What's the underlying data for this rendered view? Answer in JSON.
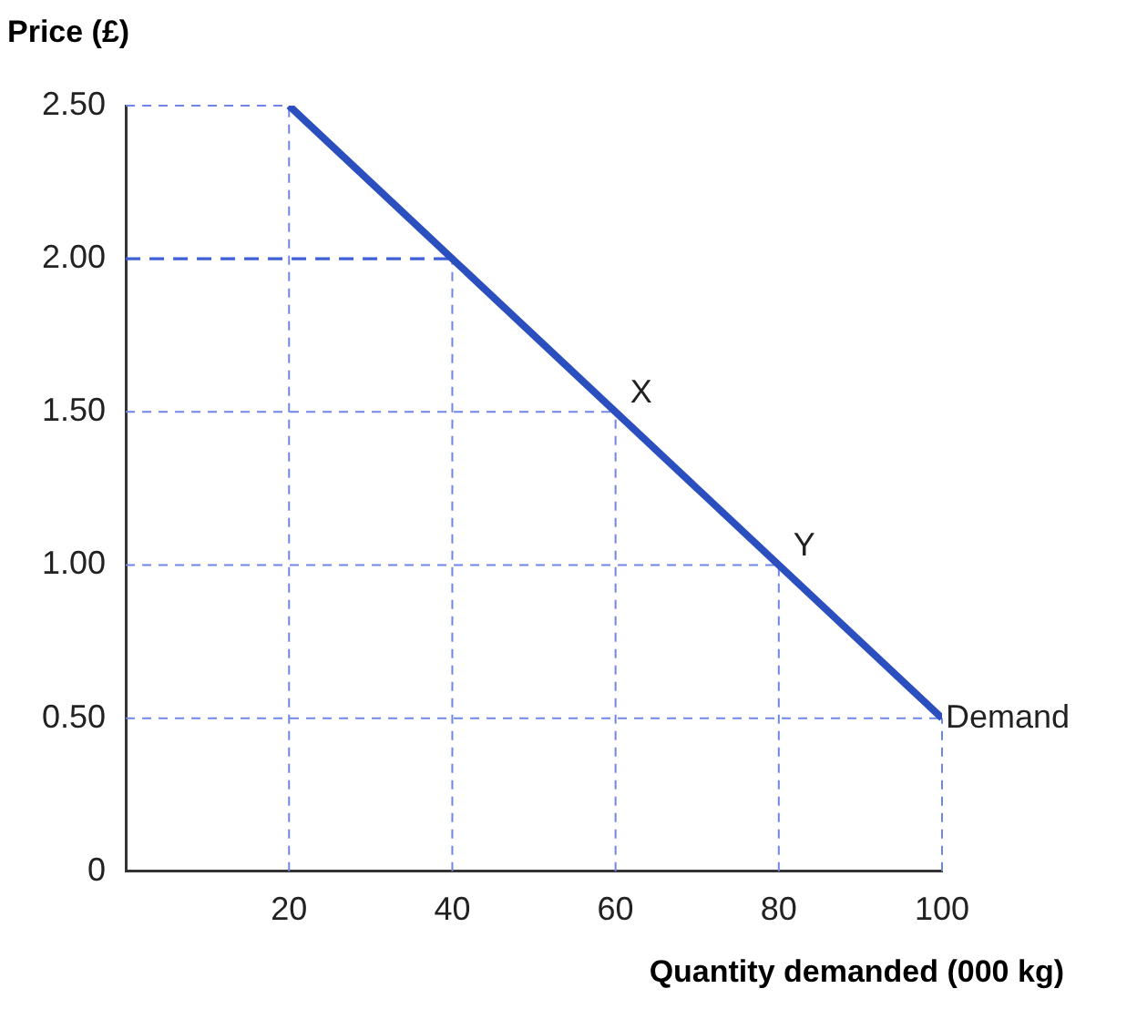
{
  "chart_data": {
    "type": "line",
    "xlabel": "Quantity demanded (000 kg)",
    "ylabel": "Price (£)",
    "x": [
      20,
      100
    ],
    "series": [
      {
        "name": "Demand",
        "color": "#2b4fbe",
        "values": [
          2.5,
          0.5
        ]
      }
    ],
    "xlim": [
      0,
      100
    ],
    "xticks": [
      20,
      40,
      60,
      80,
      100
    ],
    "ylim": [
      0,
      2.5
    ],
    "yticks": [
      0,
      {
        "value": 0.5,
        "label": "0.50"
      },
      {
        "value": 1,
        "label": "1.00"
      },
      {
        "value": 1.5,
        "label": "1.50"
      },
      {
        "value": 2,
        "label": "2.00"
      },
      {
        "value": 2.5,
        "label": "2.50"
      }
    ],
    "annotations": [
      {
        "text": "X",
        "x": 60,
        "y": 1.5
      },
      {
        "text": "Y",
        "x": 80,
        "y": 1
      }
    ],
    "ref_lines": [
      {
        "axis": "y",
        "value": 2,
        "color": "#3f5fd6",
        "line_style": "dashed"
      }
    ],
    "grid": true,
    "legend": false,
    "marker": "none",
    "line_style": "solid"
  }
}
